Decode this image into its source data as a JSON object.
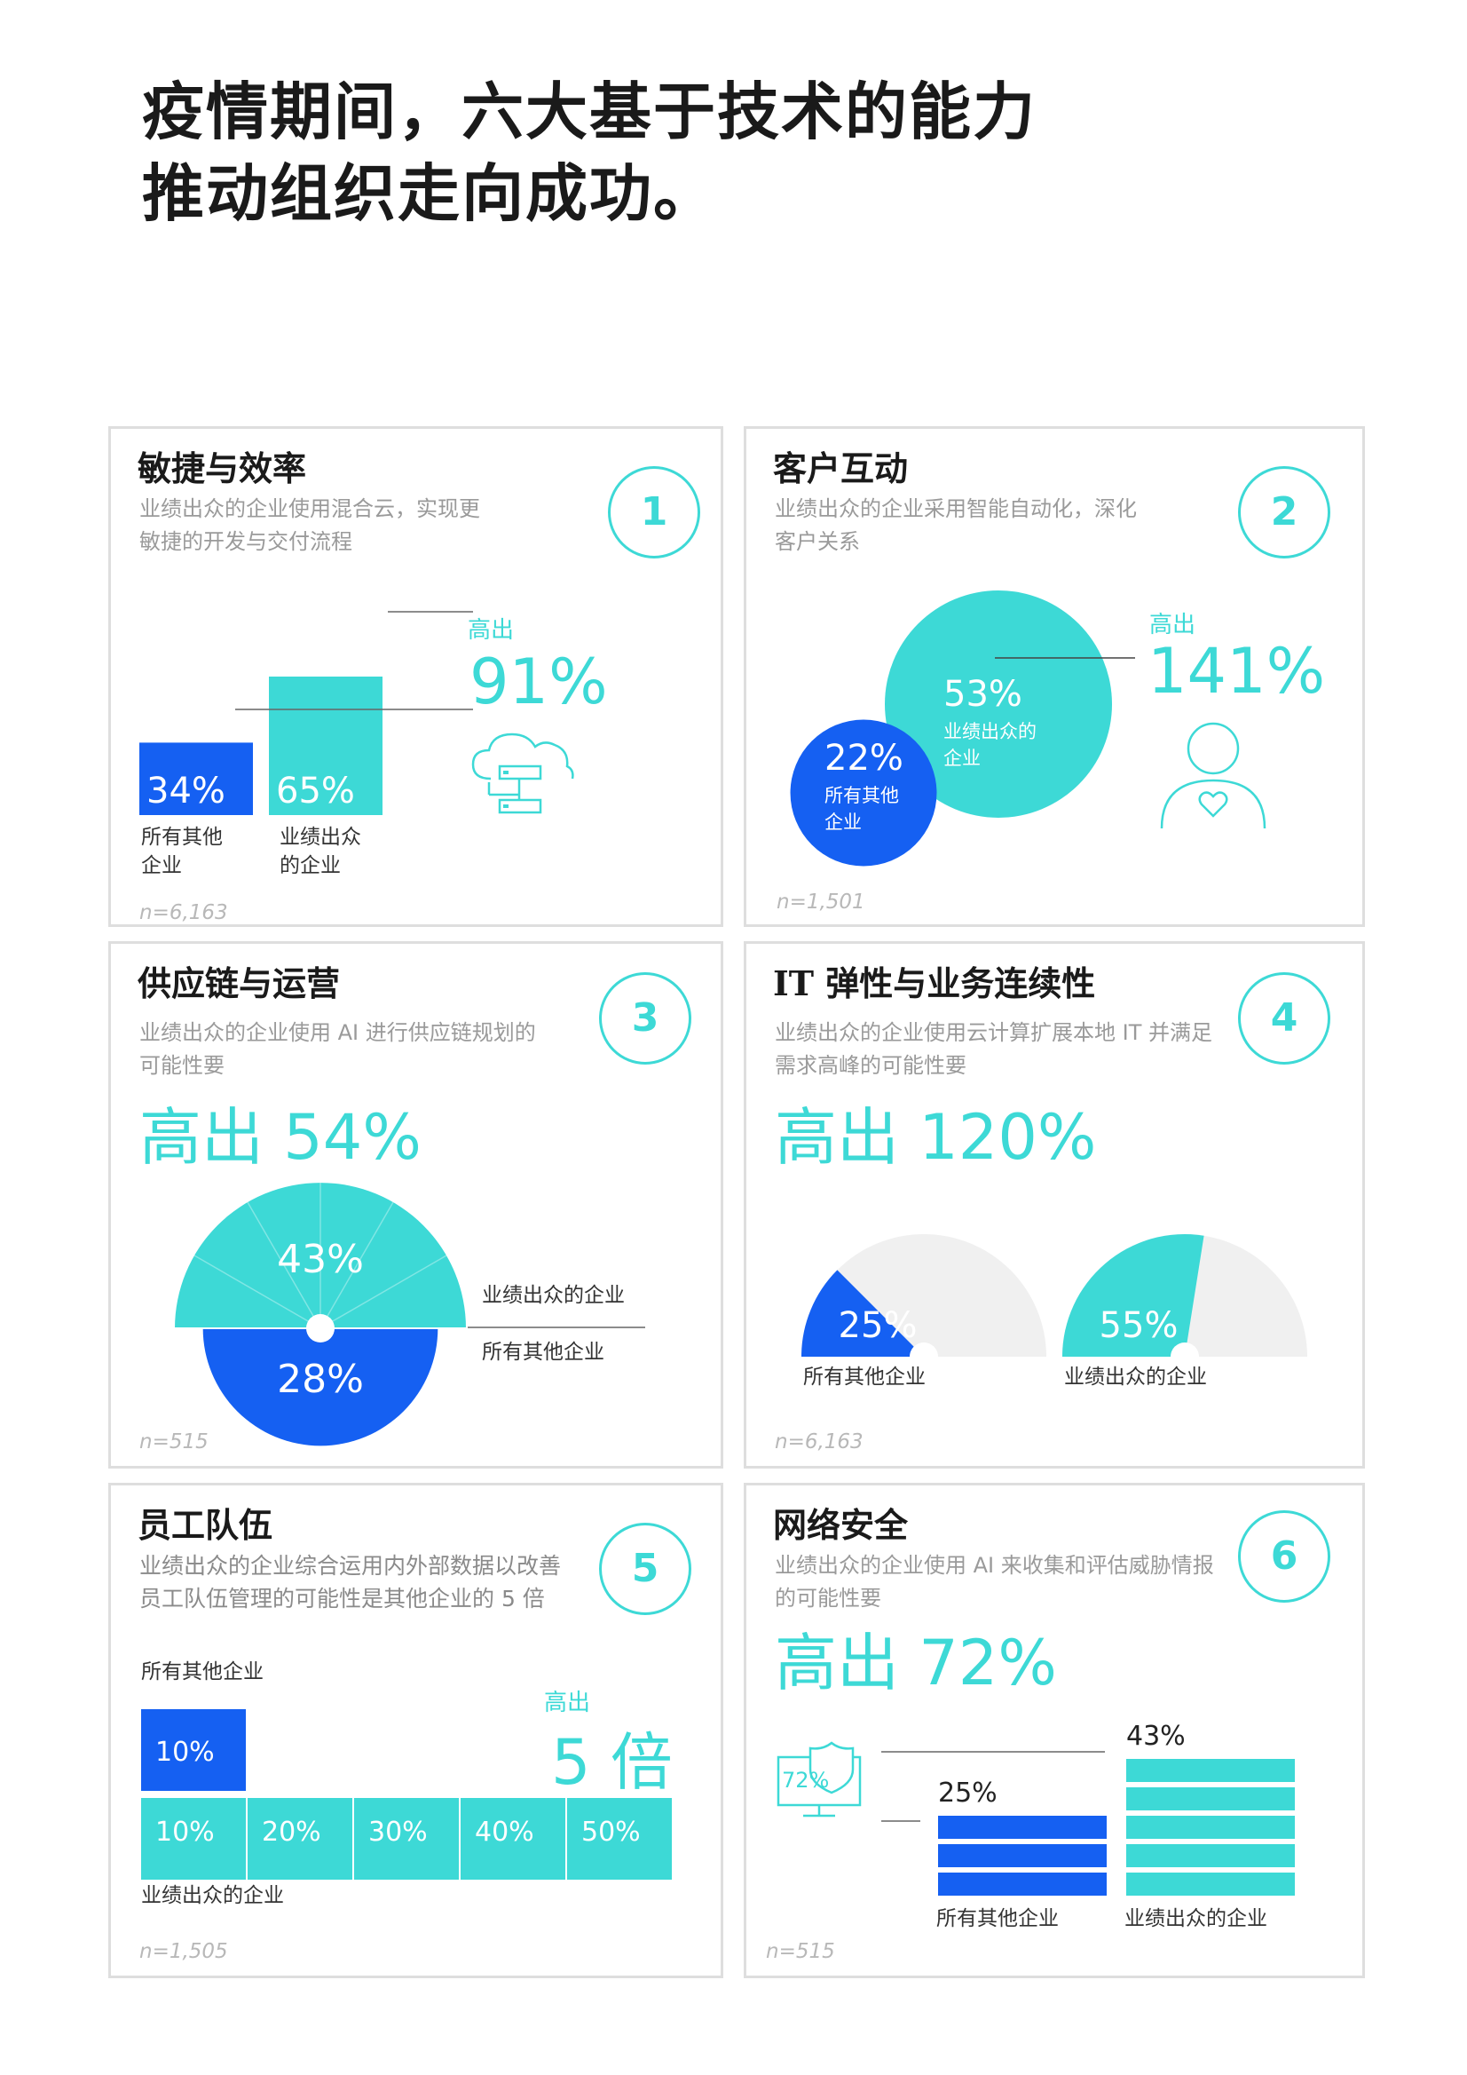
{
  "title_line1": "疫情期间，六大基于技术的能力",
  "title_line2": "推动组织走向成功。",
  "colors": {
    "teal": "#3dd9d6",
    "blue": "#1560f2",
    "grey": "#f0f0f0",
    "border": "#dedede"
  },
  "panels": [
    {
      "number": "1",
      "heading": "敏捷与效率",
      "desc1": "业绩出众的企业使用混合云，实现更",
      "desc2": "敏捷的开发与交付流程",
      "higher_label": "高出",
      "higher_value": "91%",
      "icon": "cloud-server-icon",
      "bar_labels": [
        "所有其他\n企业",
        "业绩出众\n的企业"
      ],
      "n": "n=6,163"
    },
    {
      "number": "2",
      "heading": "客户互动",
      "desc1": "业绩出众的企业采用智能自动化，深化",
      "desc2": "客户关系",
      "higher_label": "高出",
      "higher_value": "141%",
      "icon": "person-heart-icon",
      "top_value": "53%",
      "top_label1": "业绩出众的",
      "top_label2": "企业",
      "other_value": "22%",
      "other_label1": "所有其他",
      "other_label2": "企业",
      "n": "n=1,501"
    },
    {
      "number": "3",
      "heading": "供应链与运营",
      "desc1": "业绩出众的企业使用 AI 进行供应链规划的",
      "desc2": "可能性要",
      "big": "高出 54%",
      "legend_top": "业绩出众的企业",
      "legend_other": "所有其他企业",
      "n": "n=515"
    },
    {
      "number": "4",
      "heading": "IT 弹性与业务连续性",
      "desc1": "业绩出众的企业使用云计算扩展本地 IT 并满足",
      "desc2": "需求高峰的可能性要",
      "big": "高出 120%",
      "label_other": "所有其他企业",
      "label_top": "业绩出众的企业",
      "n": "n=6,163"
    },
    {
      "number": "5",
      "heading": "员工队伍",
      "desc1": "业绩出众的企业综合运用内外部数据以改善",
      "desc2": "员工队伍管理的可能性是其他企业的 5 倍",
      "label_other": "所有其他企业",
      "label_top": "业绩出众的企业",
      "higher_label": "高出",
      "higher_value": "5 倍",
      "n": "n=1,505"
    },
    {
      "number": "6",
      "heading": "网络安全",
      "desc1": "业绩出众的企业使用 AI 来收集和评估威胁情报",
      "desc2": "的可能性要",
      "big": "高出 72%",
      "icon_value": "72%",
      "icon": "monitor-shield-icon",
      "label_other": "所有其他企业",
      "label_top": "业绩出众的企业",
      "n": "n=515"
    }
  ],
  "chart_data": [
    {
      "type": "bar",
      "categories": [
        "所有其他企业",
        "业绩出众的企业"
      ],
      "values": [
        34,
        65
      ],
      "value_labels": [
        "34%",
        "65%"
      ]
    },
    {
      "type": "scatter",
      "categories": [
        "所有其他企业",
        "业绩出众的企业"
      ],
      "values": [
        22,
        53
      ],
      "value_labels": [
        "22%",
        "53%"
      ]
    },
    {
      "type": "pie",
      "categories": [
        "业绩出众的企业",
        "所有其他企业"
      ],
      "values": [
        43,
        28
      ],
      "value_labels": [
        "43%",
        "28%"
      ]
    },
    {
      "type": "pie",
      "categories": [
        "所有其他企业",
        "业绩出众的企业"
      ],
      "values": [
        25,
        55
      ],
      "value_labels": [
        "25%",
        "55%"
      ]
    },
    {
      "type": "bar",
      "categories": [
        "所有其他企业",
        "业绩出众的企业"
      ],
      "values": [
        10,
        50
      ],
      "segment_labels": [
        "10%",
        "20%",
        "30%",
        "40%",
        "50%"
      ],
      "other_label": "10%"
    },
    {
      "type": "bar",
      "categories": [
        "所有其他企业",
        "业绩出众的企业"
      ],
      "values": [
        25,
        43
      ],
      "value_labels": [
        "25%",
        "43%"
      ]
    }
  ]
}
